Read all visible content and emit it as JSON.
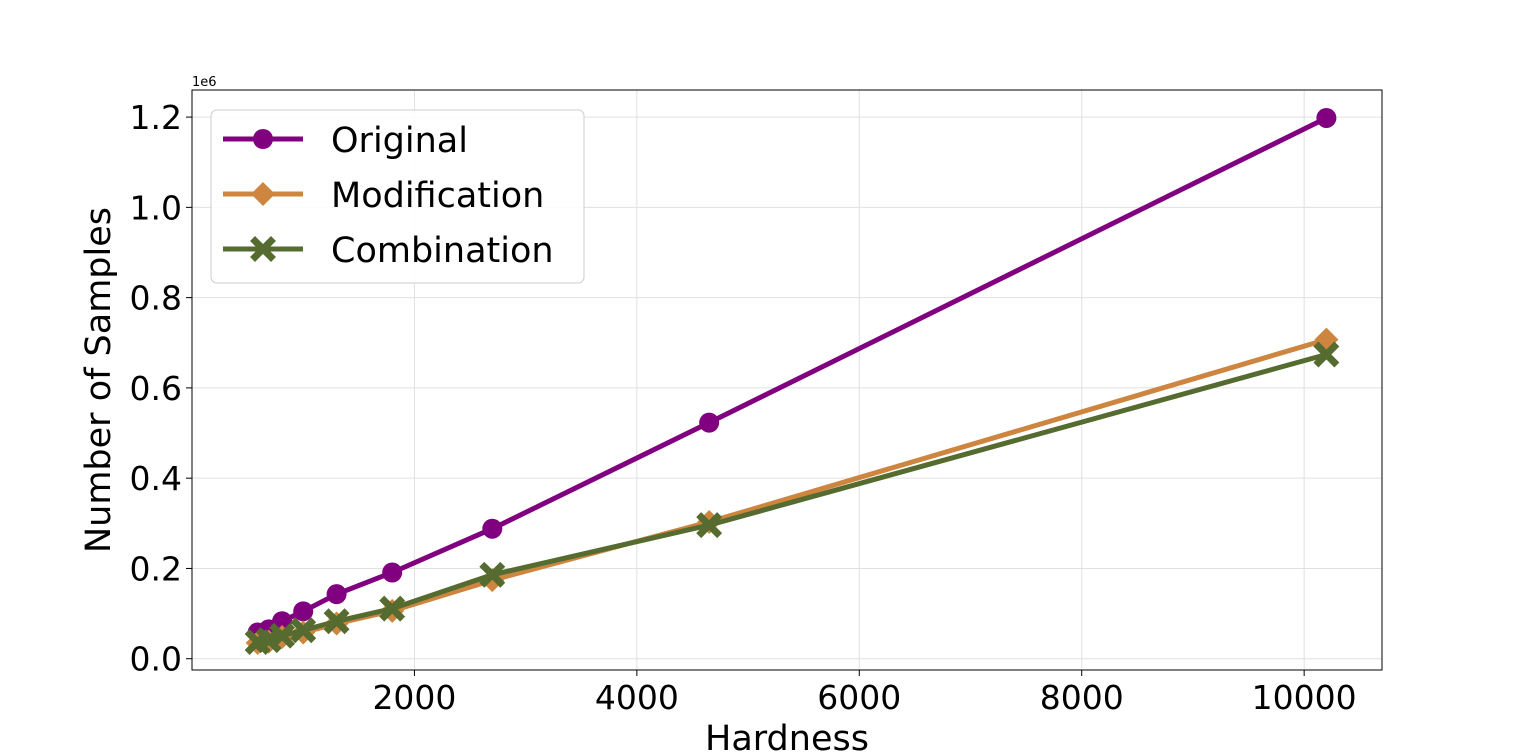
{
  "chart_data": {
    "type": "line",
    "title": "",
    "xlabel": "Hardness",
    "ylabel": "Number of Samples",
    "y_offset_label": "1e6",
    "y_scale_factor": 1000000,
    "xlim": [
      0,
      10700
    ],
    "ylim": [
      -0.025,
      1.26
    ],
    "x_ticks": [
      2000,
      4000,
      6000,
      8000,
      10000
    ],
    "x_tick_labels": [
      "2000",
      "4000",
      "6000",
      "8000",
      "10000"
    ],
    "y_ticks": [
      0.0,
      0.2,
      0.4,
      0.6,
      0.8,
      1.0,
      1.2
    ],
    "y_tick_labels": [
      "0.0",
      "0.2",
      "0.4",
      "0.6",
      "0.8",
      "1.0",
      "1.2"
    ],
    "grid": true,
    "legend_position": "top-left",
    "series": [
      {
        "name": "Original",
        "color": "#800080",
        "marker": "circle",
        "x": [
          590,
          690,
          810,
          1000,
          1300,
          1800,
          2700,
          4650,
          10200
        ],
        "y": [
          0.058,
          0.065,
          0.083,
          0.105,
          0.143,
          0.191,
          0.288,
          0.523,
          1.198
        ]
      },
      {
        "name": "Modification",
        "color": "#CD853F",
        "marker": "diamond",
        "x": [
          590,
          690,
          810,
          1000,
          1300,
          1800,
          2700,
          4650,
          10200
        ],
        "y": [
          0.035,
          0.038,
          0.048,
          0.058,
          0.078,
          0.106,
          0.174,
          0.303,
          0.707
        ]
      },
      {
        "name": "Combination",
        "color": "#556B2F",
        "marker": "x",
        "x": [
          590,
          690,
          810,
          1000,
          1300,
          1800,
          2700,
          4650,
          10200
        ],
        "y": [
          0.037,
          0.041,
          0.051,
          0.063,
          0.083,
          0.111,
          0.186,
          0.296,
          0.674
        ]
      }
    ]
  }
}
